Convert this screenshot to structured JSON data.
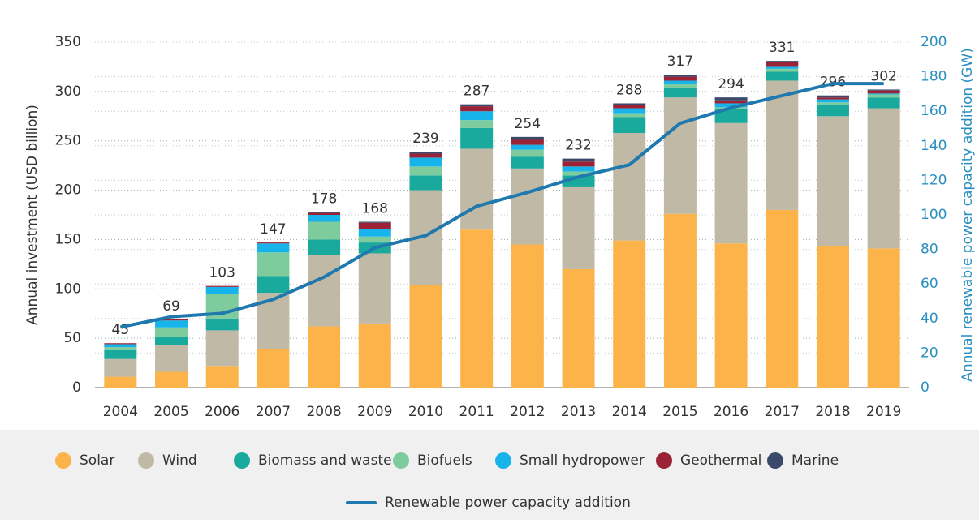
{
  "chart_data": {
    "type": "bar",
    "y_label": "Annual investment (USD billion)",
    "y2_label": "Annual renewable power capacity addition (GW)",
    "categories": [
      "2004",
      "2005",
      "2006",
      "2007",
      "2008",
      "2009",
      "2010",
      "2011",
      "2012",
      "2013",
      "2014",
      "2015",
      "2016",
      "2017",
      "2018",
      "2019"
    ],
    "stacked": true,
    "series": [
      {
        "name": "Solar",
        "color": "#fbb34a",
        "values": [
          11,
          16,
          22,
          39,
          62,
          65,
          104,
          160,
          145,
          120,
          149,
          176,
          146,
          180,
          143,
          141
        ]
      },
      {
        "name": "Wind",
        "color": "#c0b9a6",
        "values": [
          18,
          27,
          36,
          57,
          72,
          71,
          96,
          82,
          77,
          83,
          109,
          118,
          122,
          131,
          132,
          142
        ]
      },
      {
        "name": "Biomass and waste",
        "color": "#1aa99d",
        "values": [
          9,
          8,
          12,
          17,
          16,
          11,
          15,
          21,
          12,
          12,
          16,
          10,
          14,
          9,
          12,
          11
        ]
      },
      {
        "name": "Biofuels",
        "color": "#7ecb9e",
        "values": [
          3,
          10,
          25,
          24,
          18,
          6,
          9,
          8,
          7,
          4,
          4,
          4,
          2,
          3,
          2,
          3
        ]
      },
      {
        "name": "Small hydropower",
        "color": "#16b4ea",
        "values": [
          3,
          7,
          7,
          9,
          7,
          8,
          9,
          9,
          5,
          5,
          5,
          3,
          4,
          2,
          3,
          1
        ]
      },
      {
        "name": "Geothermal",
        "color": "#9b2335",
        "values": [
          1,
          1,
          1,
          1,
          2,
          6,
          4,
          5,
          5,
          5,
          3,
          4,
          3,
          5,
          2,
          3
        ]
      },
      {
        "name": "Marine",
        "color": "#3b4a6b",
        "values": [
          0,
          0,
          0,
          0,
          1,
          1,
          2,
          2,
          3,
          3,
          2,
          2,
          3,
          1,
          2,
          1
        ]
      },
      {
        "name": "Renewable power capacity addition",
        "color": "#1f79ae",
        "type": "line",
        "axis": "y2",
        "values": [
          35,
          41,
          43,
          51,
          64,
          81,
          88,
          105,
          113,
          122,
          129,
          153,
          162,
          169,
          176,
          176
        ]
      }
    ],
    "totals": [
      45,
      69,
      103,
      147,
      178,
      168,
      239,
      287,
      254,
      232,
      288,
      317,
      294,
      331,
      296,
      302
    ],
    "ylim": [
      0,
      350
    ],
    "yticks": [
      0,
      50,
      100,
      150,
      200,
      250,
      300,
      350
    ],
    "y2lim": [
      0,
      200
    ],
    "y2ticks": [
      0,
      20,
      40,
      60,
      80,
      100,
      120,
      140,
      160,
      180,
      200
    ],
    "grid": true
  }
}
